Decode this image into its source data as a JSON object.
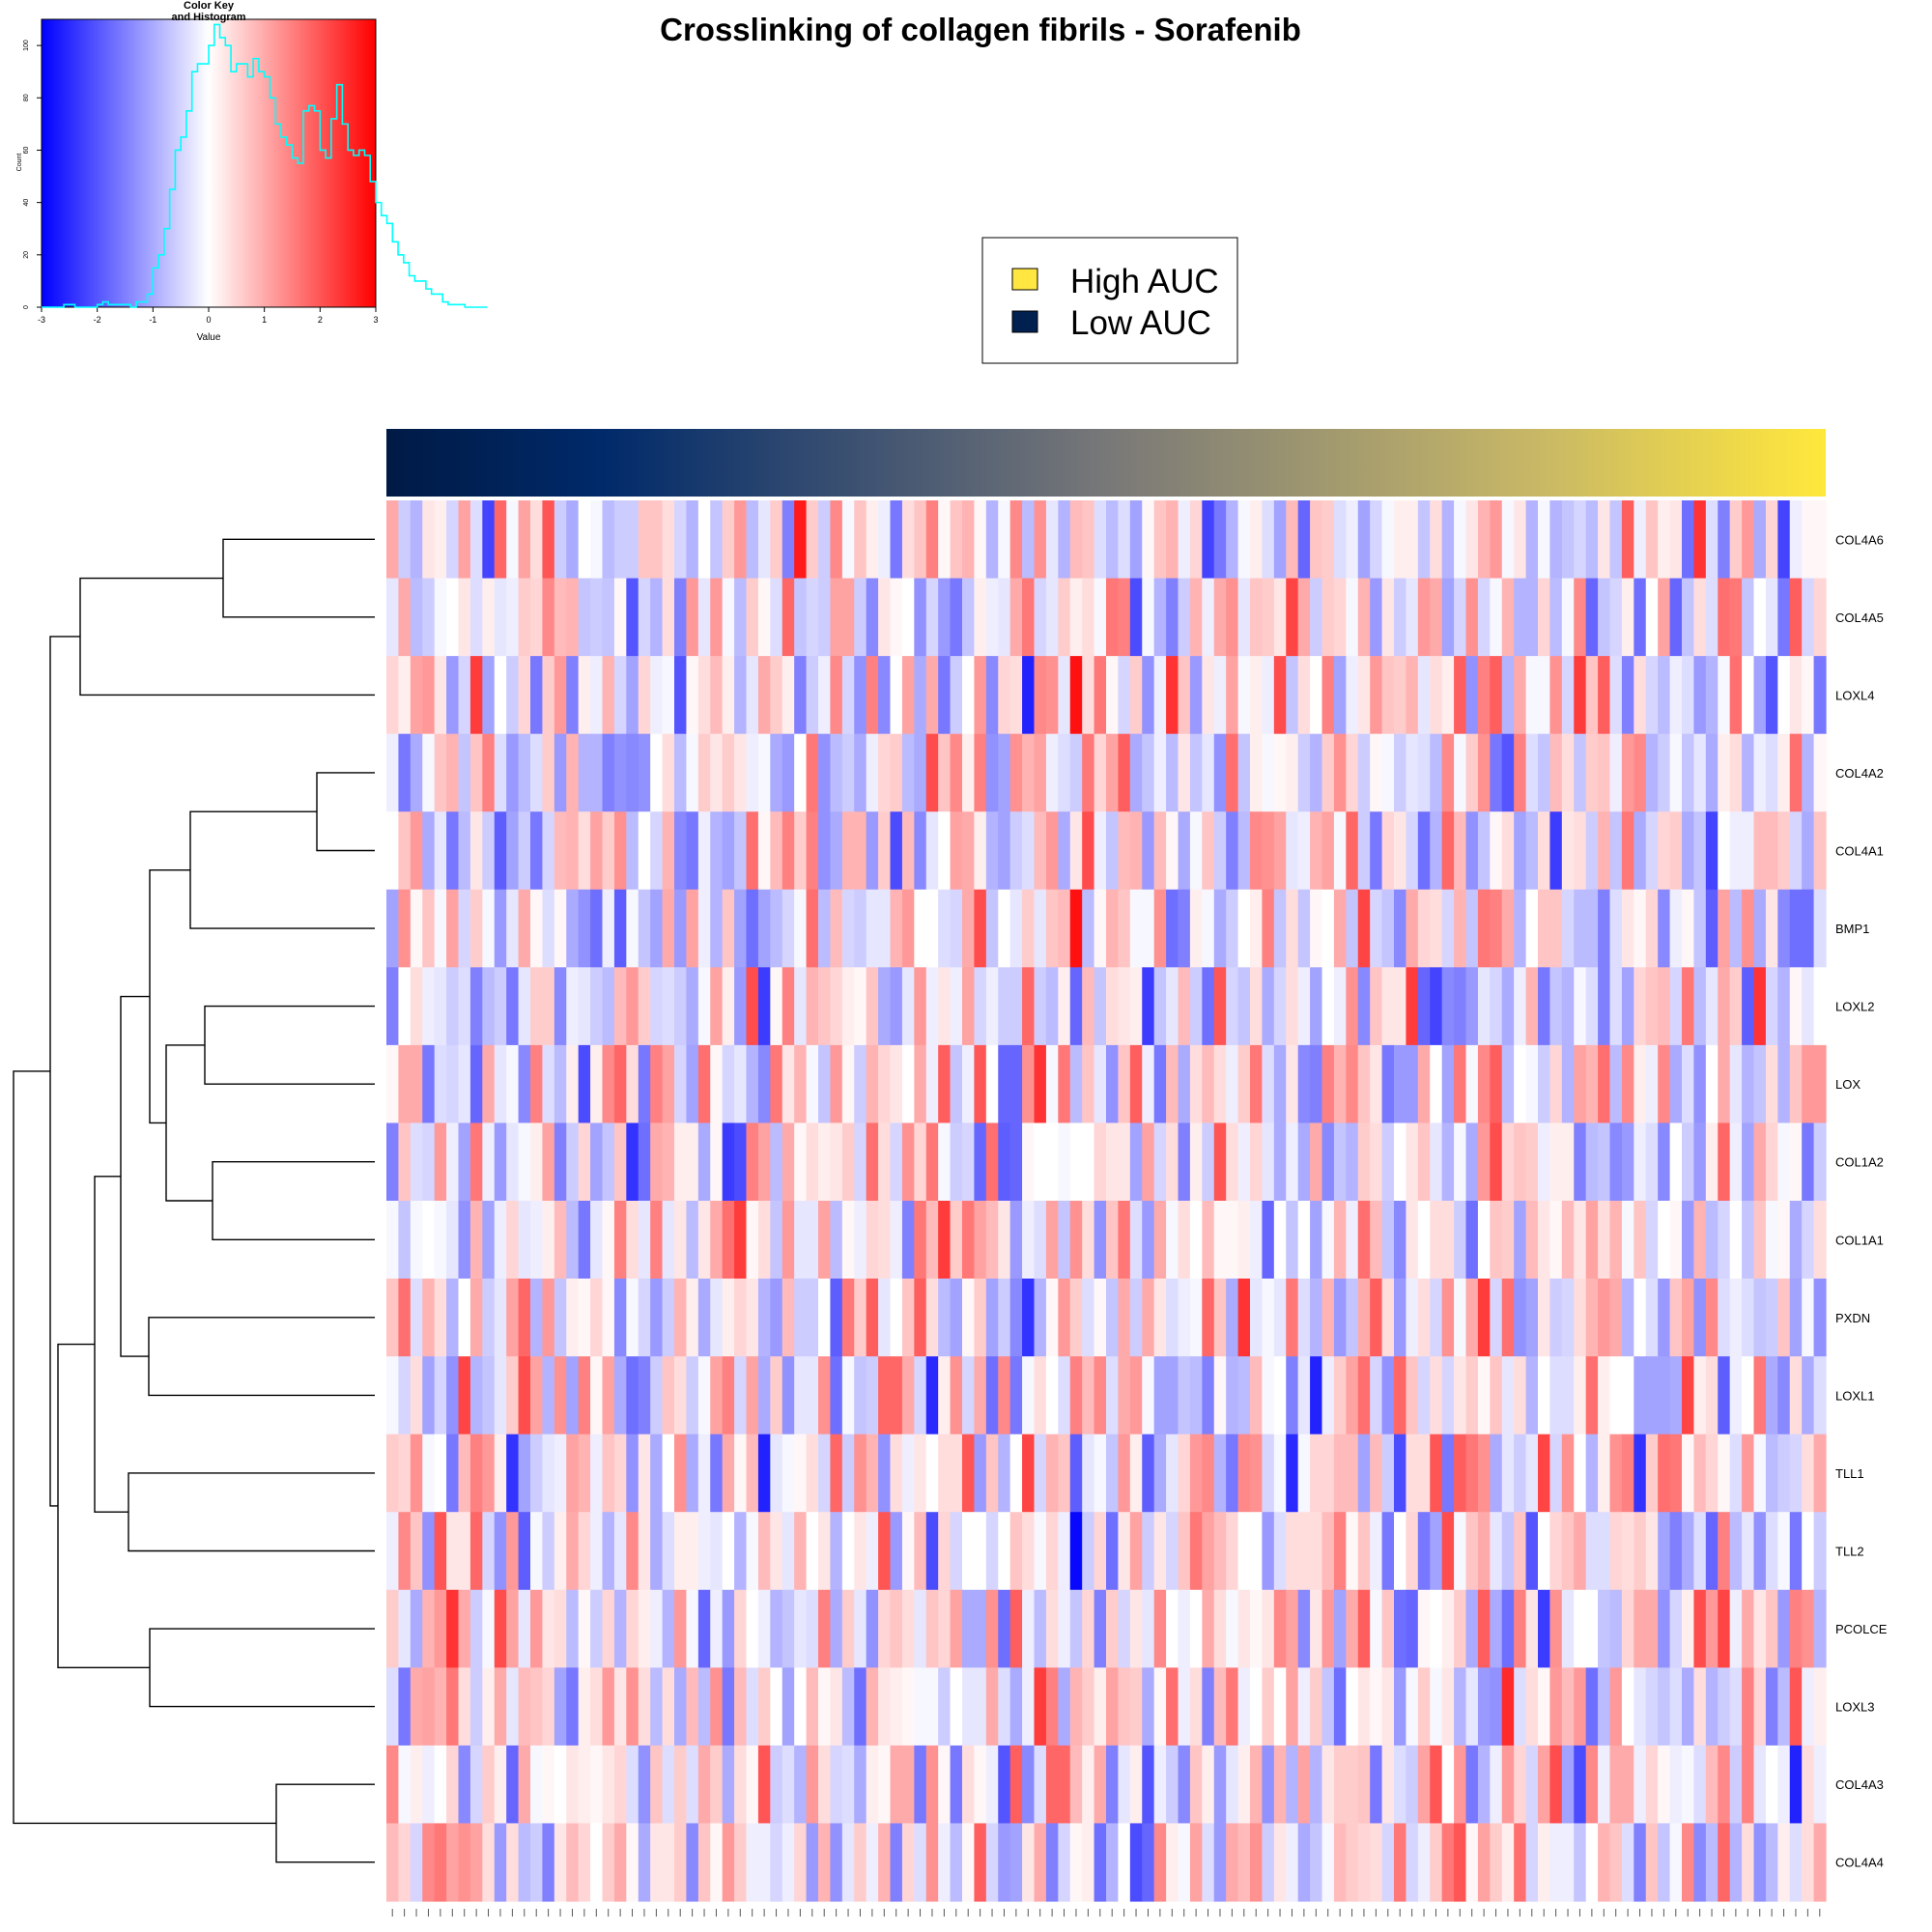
{
  "chart_data": [
    {
      "type": "heatmap",
      "title": "Crosslinking of collagen fibrils - Sorafenib",
      "rows": [
        "COL4A6",
        "COL4A5",
        "LOXL4",
        "COL4A2",
        "COL4A1",
        "BMP1",
        "LOXL2",
        "LOX",
        "COL1A2",
        "COL1A1",
        "PXDN",
        "LOXL1",
        "TLL1",
        "TLL2",
        "PCOLCE",
        "LOXL3",
        "COL4A3",
        "COL4A4"
      ],
      "n_columns": 120,
      "value_range": [
        -3,
        3
      ],
      "colors": {
        "low": "#0000ff",
        "mid": "#ffffff",
        "high": "#ff0000"
      },
      "column_annotation": {
        "low_color": "#002050",
        "mid_color": "#7a7a78",
        "high_color": "#ffe83c"
      },
      "legend": {
        "items": [
          {
            "label": "High AUC",
            "color": "#ffe640"
          },
          {
            "label": "Low AUC",
            "color": "#002050"
          }
        ]
      },
      "dendrogram": {
        "nodes": [
          {
            "a": "COL4A6",
            "b": "COL4A5"
          },
          {
            "a": "COL4A2",
            "b": "COL4A1"
          },
          {
            "a": "LOXL2",
            "b": "LOX"
          },
          {
            "a": "COL1A2",
            "b": "COL1A1"
          },
          {
            "a": "PXDN",
            "b": "LOXL1"
          },
          {
            "a": "TLL1",
            "b": "TLL2"
          },
          {
            "a": "PCOLCE",
            "b": "LOXL3"
          },
          {
            "a": "COL4A3",
            "b": "COL4A4"
          }
        ]
      }
    },
    {
      "type": "bar",
      "title": "Color Key\nand Histogram",
      "title_lines": [
        "Color Key",
        "and Histogram"
      ],
      "xlabel": "Value",
      "ylabel": "Count",
      "xlim": [
        -3,
        3
      ],
      "ylim": [
        0,
        110
      ],
      "x_ticks": [
        -3,
        -2,
        -1,
        0,
        1,
        2,
        3
      ],
      "y_ticks": [
        0,
        20,
        40,
        60,
        80,
        100
      ],
      "histogram_line_color": "#00ffff",
      "bin_width": 0.1,
      "bin_start": -3.0,
      "counts": [
        0,
        0,
        0,
        0,
        1,
        1,
        0,
        0,
        0,
        0,
        1,
        2,
        1,
        1,
        1,
        1,
        0,
        2,
        2,
        5,
        15,
        20,
        30,
        45,
        60,
        65,
        75,
        90,
        93,
        93,
        100,
        108,
        103,
        100,
        90,
        93,
        93,
        88,
        95,
        90,
        88,
        80,
        70,
        65,
        62,
        57,
        55,
        75,
        77,
        75,
        60,
        57,
        72,
        85,
        70,
        60,
        58,
        60,
        58,
        48,
        40,
        35,
        32,
        25,
        20,
        17,
        12,
        10,
        10,
        7,
        5,
        5,
        2,
        1,
        1,
        1,
        0,
        0,
        0,
        0
      ]
    }
  ]
}
